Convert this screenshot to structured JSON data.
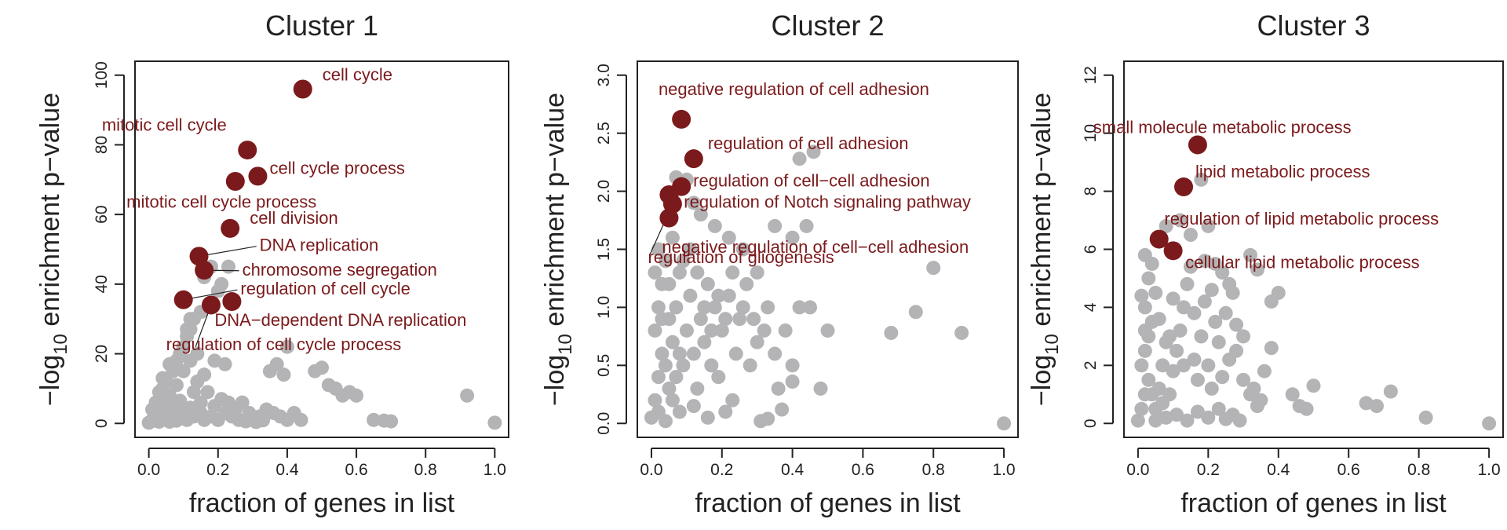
{
  "chart_data": [
    {
      "type": "scatter",
      "title": "Cluster 1",
      "xlabel": "fraction of genes in list",
      "ylabel_main": "−log",
      "ylabel_sub": "10",
      "ylabel_rest": " enrichment p−value",
      "xlim": [
        0,
        1
      ],
      "ylim": [
        0,
        100
      ],
      "xticks": [
        0,
        0.2,
        0.4,
        0.6,
        0.8,
        1.0
      ],
      "xtick_labels": [
        "0.0",
        "0.2",
        "0.4",
        "0.6",
        "0.8",
        "1.0"
      ],
      "yticks": [
        0,
        20,
        40,
        60,
        80,
        100
      ],
      "ytick_labels": [
        "0",
        "20",
        "40",
        "60",
        "80",
        "100"
      ],
      "highlight_color": "#7b1a1c",
      "background_color": "#b4b4b6",
      "highlighted": [
        {
          "label": "cell cycle",
          "x": 0.445,
          "y": 96
        },
        {
          "label": "mitotic cell cycle",
          "x": 0.285,
          "y": 78.5
        },
        {
          "label": "cell cycle process",
          "x": 0.315,
          "y": 71
        },
        {
          "label": "mitotic cell cycle process",
          "x": 0.25,
          "y": 69.5
        },
        {
          "label": "cell division",
          "x": 0.235,
          "y": 56
        },
        {
          "label": "DNA replication",
          "x": 0.145,
          "y": 48
        },
        {
          "label": "chromosome segregation",
          "x": 0.16,
          "y": 44
        },
        {
          "label": "regulation of cell cycle",
          "x": 0.1,
          "y": 35.5
        },
        {
          "label": "DNA−dependent DNA replication",
          "x": 0.18,
          "y": 34
        },
        {
          "label": "regulation of cell cycle process",
          "x": 0.24,
          "y": 35
        }
      ],
      "background": [
        [
          0.0,
          0.2
        ],
        [
          0.01,
          1
        ],
        [
          0.02,
          2
        ],
        [
          0.03,
          0.5
        ],
        [
          0.02,
          3
        ],
        [
          0.04,
          5
        ],
        [
          0.03,
          7
        ],
        [
          0.05,
          4
        ],
        [
          0.06,
          8
        ],
        [
          0.04,
          10
        ],
        [
          0.05,
          12
        ],
        [
          0.07,
          15
        ],
        [
          0.06,
          17
        ],
        [
          0.08,
          18
        ],
        [
          0.09,
          20
        ],
        [
          0.1,
          22
        ],
        [
          0.11,
          25
        ],
        [
          0.12,
          27
        ],
        [
          0.13,
          30
        ],
        [
          0.12,
          18
        ],
        [
          0.14,
          20
        ],
        [
          0.1,
          15
        ],
        [
          0.08,
          11
        ],
        [
          0.07,
          6
        ],
        [
          0.09,
          3
        ],
        [
          0.11,
          1
        ],
        [
          0.13,
          2
        ],
        [
          0.15,
          3
        ],
        [
          0.16,
          1
        ],
        [
          0.18,
          2
        ],
        [
          0.2,
          1
        ],
        [
          0.22,
          3
        ],
        [
          0.24,
          2
        ],
        [
          0.25,
          4
        ],
        [
          0.27,
          6
        ],
        [
          0.29,
          3
        ],
        [
          0.3,
          1
        ],
        [
          0.32,
          2
        ],
        [
          0.34,
          4
        ],
        [
          0.36,
          3
        ],
        [
          0.38,
          2
        ],
        [
          0.4,
          1
        ],
        [
          0.42,
          3
        ],
        [
          0.44,
          1
        ],
        [
          0.19,
          5
        ],
        [
          0.21,
          7
        ],
        [
          0.23,
          6
        ],
        [
          0.17,
          9
        ],
        [
          0.15,
          6
        ],
        [
          0.14,
          12
        ],
        [
          0.16,
          14
        ],
        [
          0.19,
          18
        ],
        [
          0.22,
          17
        ],
        [
          0.21,
          40
        ],
        [
          0.18,
          45
        ],
        [
          0.16,
          42
        ],
        [
          0.2,
          38
        ],
        [
          0.23,
          45
        ],
        [
          0.12,
          30
        ],
        [
          0.11,
          27
        ],
        [
          0.15,
          32
        ],
        [
          0.35,
          15
        ],
        [
          0.37,
          17
        ],
        [
          0.39,
          14
        ],
        [
          0.4,
          22
        ],
        [
          0.48,
          15
        ],
        [
          0.5,
          16
        ],
        [
          0.52,
          11
        ],
        [
          0.54,
          10
        ],
        [
          0.56,
          8
        ],
        [
          0.58,
          9
        ],
        [
          0.6,
          8
        ],
        [
          0.65,
          1
        ],
        [
          0.68,
          0.8
        ],
        [
          0.7,
          0.6
        ],
        [
          0.92,
          8
        ],
        [
          1.0,
          0.2
        ],
        [
          0.05,
          1.5
        ],
        [
          0.06,
          0.5
        ],
        [
          0.08,
          0.8
        ],
        [
          0.1,
          2.5
        ],
        [
          0.12,
          4.5
        ],
        [
          0.02,
          0.8
        ],
        [
          0.03,
          1.8
        ],
        [
          0.04,
          2.6
        ],
        [
          0.07,
          2.2
        ],
        [
          0.09,
          6.5
        ],
        [
          0.13,
          9
        ],
        [
          0.26,
          1
        ],
        [
          0.28,
          0.6
        ],
        [
          0.31,
          0.4
        ],
        [
          0.33,
          0.9
        ],
        [
          0.01,
          4
        ],
        [
          0.02,
          6
        ],
        [
          0.03,
          9
        ],
        [
          0.04,
          13
        ]
      ]
    },
    {
      "type": "scatter",
      "title": "Cluster 2",
      "xlabel": "fraction of genes in list",
      "ylabel_main": "−log",
      "ylabel_sub": "10",
      "ylabel_rest": " enrichment p−value",
      "xlim": [
        0,
        1
      ],
      "ylim": [
        0,
        3
      ],
      "xticks": [
        0,
        0.2,
        0.4,
        0.6,
        0.8,
        1.0
      ],
      "xtick_labels": [
        "0.0",
        "0.2",
        "0.4",
        "0.6",
        "0.8",
        "1.0"
      ],
      "yticks": [
        0,
        0.5,
        1.0,
        1.5,
        2.0,
        2.5,
        3.0
      ],
      "ytick_labels": [
        "0.0",
        "0.5",
        "1.0",
        "1.5",
        "2.0",
        "2.5",
        "3.0"
      ],
      "highlight_color": "#7b1a1c",
      "background_color": "#b4b4b6",
      "highlighted": [
        {
          "label": "negative regulation of cell adhesion",
          "x": 0.085,
          "y": 2.62
        },
        {
          "label": "regulation of cell adhesion",
          "x": 0.12,
          "y": 2.28
        },
        {
          "label": "regulation of cell−cell adhesion",
          "x": 0.085,
          "y": 2.04
        },
        {
          "label": "regulation of Notch signaling pathway",
          "x": 0.05,
          "y": 1.97
        },
        {
          "label": "negative regulation of cell−cell adhesion",
          "x": 0.06,
          "y": 1.89
        },
        {
          "label": "regulation of gliogenesis",
          "x": 0.05,
          "y": 1.77
        }
      ],
      "background": [
        [
          0.0,
          0.05
        ],
        [
          0.01,
          0.2
        ],
        [
          0.02,
          0.4
        ],
        [
          0.03,
          0.6
        ],
        [
          0.01,
          0.8
        ],
        [
          0.02,
          1.0
        ],
        [
          0.03,
          1.2
        ],
        [
          0.04,
          1.4
        ],
        [
          0.02,
          1.5
        ],
        [
          0.05,
          0.3
        ],
        [
          0.06,
          0.7
        ],
        [
          0.07,
          1.0
        ],
        [
          0.08,
          1.3
        ],
        [
          0.06,
          1.6
        ],
        [
          0.05,
          0.9
        ],
        [
          0.09,
          0.5
        ],
        [
          0.1,
          0.8
        ],
        [
          0.11,
          1.1
        ],
        [
          0.12,
          0.6
        ],
        [
          0.13,
          0.3
        ],
        [
          0.14,
          0.9
        ],
        [
          0.15,
          0.7
        ],
        [
          0.16,
          1.2
        ],
        [
          0.17,
          0.5
        ],
        [
          0.18,
          1.0
        ],
        [
          0.19,
          0.4
        ],
        [
          0.2,
          0.8
        ],
        [
          0.22,
          1.1
        ],
        [
          0.24,
          0.6
        ],
        [
          0.25,
          0.9
        ],
        [
          0.27,
          1.2
        ],
        [
          0.28,
          0.5
        ],
        [
          0.3,
          0.7
        ],
        [
          0.32,
          0.8
        ],
        [
          0.33,
          1.0
        ],
        [
          0.35,
          0.6
        ],
        [
          0.36,
          0.3
        ],
        [
          0.38,
          0.8
        ],
        [
          0.4,
          0.5
        ],
        [
          0.42,
          1.0
        ],
        [
          0.45,
          1.0
        ],
        [
          0.48,
          0.3
        ],
        [
          0.5,
          0.8
        ],
        [
          0.42,
          2.28
        ],
        [
          0.46,
          2.34
        ],
        [
          0.3,
          1.3
        ],
        [
          0.26,
          1.5
        ],
        [
          0.22,
          1.6
        ],
        [
          0.18,
          1.7
        ],
        [
          0.14,
          1.8
        ],
        [
          0.12,
          1.9
        ],
        [
          0.1,
          2.1
        ],
        [
          0.07,
          2.12
        ],
        [
          0.35,
          1.7
        ],
        [
          0.4,
          1.6
        ],
        [
          0.44,
          1.7
        ],
        [
          0.68,
          0.78
        ],
        [
          0.75,
          0.96
        ],
        [
          0.8,
          1.34
        ],
        [
          0.88,
          0.78
        ],
        [
          1.0,
          0.0
        ],
        [
          0.4,
          0.36
        ],
        [
          0.33,
          0.04
        ],
        [
          0.37,
          0.12
        ],
        [
          0.31,
          0.02
        ],
        [
          0.23,
          0.2
        ],
        [
          0.21,
          0.1
        ],
        [
          0.16,
          0.05
        ],
        [
          0.12,
          0.15
        ],
        [
          0.08,
          0.1
        ],
        [
          0.04,
          0.02
        ],
        [
          0.01,
          1.3
        ],
        [
          0.03,
          0.9
        ],
        [
          0.04,
          0.5
        ],
        [
          0.06,
          0.2
        ],
        [
          0.07,
          0.4
        ],
        [
          0.09,
          1.4
        ],
        [
          0.11,
          1.5
        ],
        [
          0.13,
          1.3
        ],
        [
          0.15,
          1.0
        ],
        [
          0.17,
          0.8
        ],
        [
          0.19,
          1.1
        ],
        [
          0.21,
          0.9
        ],
        [
          0.23,
          1.3
        ],
        [
          0.26,
          1.0
        ],
        [
          0.29,
          0.9
        ],
        [
          0.05,
          1.2
        ],
        [
          0.08,
          0.6
        ],
        [
          0.02,
          0.1
        ]
      ]
    },
    {
      "type": "scatter",
      "title": "Cluster 3",
      "xlabel": "fraction of genes in list",
      "ylabel_main": "−log",
      "ylabel_sub": "10",
      "ylabel_rest": " enrichment p−value",
      "xlim": [
        0,
        1
      ],
      "ylim": [
        0,
        12
      ],
      "xticks": [
        0,
        0.2,
        0.4,
        0.6,
        0.8,
        1.0
      ],
      "xtick_labels": [
        "0.0",
        "0.2",
        "0.4",
        "0.6",
        "0.8",
        "1.0"
      ],
      "yticks": [
        0,
        2,
        4,
        6,
        8,
        10,
        12
      ],
      "ytick_labels": [
        "0",
        "2",
        "4",
        "6",
        "8",
        "10",
        "12"
      ],
      "highlight_color": "#7b1a1c",
      "background_color": "#b4b4b6",
      "highlighted": [
        {
          "label": "small molecule metabolic process",
          "x": 0.17,
          "y": 9.6
        },
        {
          "label": "lipid metabolic process",
          "x": 0.13,
          "y": 8.15
        },
        {
          "label": "regulation of lipid metabolic process",
          "x": 0.06,
          "y": 6.35
        },
        {
          "label": "cellular lipid metabolic process",
          "x": 0.1,
          "y": 5.95
        }
      ],
      "background": [
        [
          0.0,
          0.1
        ],
        [
          0.01,
          0.5
        ],
        [
          0.02,
          1.0
        ],
        [
          0.03,
          1.5
        ],
        [
          0.01,
          2.0
        ],
        [
          0.02,
          2.5
        ],
        [
          0.03,
          3.0
        ],
        [
          0.04,
          3.5
        ],
        [
          0.02,
          4.0
        ],
        [
          0.05,
          0.5
        ],
        [
          0.06,
          1.2
        ],
        [
          0.07,
          2.0
        ],
        [
          0.08,
          2.8
        ],
        [
          0.06,
          3.6
        ],
        [
          0.05,
          4.5
        ],
        [
          0.03,
          5.0
        ],
        [
          0.04,
          5.5
        ],
        [
          0.02,
          5.8
        ],
        [
          0.09,
          1.0
        ],
        [
          0.1,
          1.8
        ],
        [
          0.11,
          2.5
        ],
        [
          0.12,
          3.2
        ],
        [
          0.13,
          4.0
        ],
        [
          0.14,
          4.8
        ],
        [
          0.15,
          5.4
        ],
        [
          0.16,
          2.2
        ],
        [
          0.17,
          1.5
        ],
        [
          0.18,
          3.0
        ],
        [
          0.19,
          4.2
        ],
        [
          0.2,
          2.0
        ],
        [
          0.21,
          1.2
        ],
        [
          0.22,
          3.5
        ],
        [
          0.23,
          2.8
        ],
        [
          0.24,
          1.6
        ],
        [
          0.25,
          3.8
        ],
        [
          0.27,
          4.5
        ],
        [
          0.28,
          2.5
        ],
        [
          0.3,
          1.5
        ],
        [
          0.32,
          1.0
        ],
        [
          0.34,
          0.6
        ],
        [
          0.36,
          1.8
        ],
        [
          0.38,
          4.2
        ],
        [
          0.4,
          4.5
        ],
        [
          0.38,
          2.6
        ],
        [
          0.35,
          0.8
        ],
        [
          0.33,
          1.2
        ],
        [
          0.44,
          1.0
        ],
        [
          0.46,
          0.6
        ],
        [
          0.5,
          1.3
        ],
        [
          0.48,
          0.5
        ],
        [
          0.22,
          5.5
        ],
        [
          0.24,
          5.2
        ],
        [
          0.26,
          4.8
        ],
        [
          0.2,
          6.8
        ],
        [
          0.15,
          6.5
        ],
        [
          0.12,
          7.0
        ],
        [
          0.18,
          8.4
        ],
        [
          0.08,
          6.8
        ],
        [
          0.34,
          5.3
        ],
        [
          0.32,
          5.8
        ],
        [
          0.65,
          0.7
        ],
        [
          0.68,
          0.6
        ],
        [
          0.72,
          1.1
        ],
        [
          0.82,
          0.2
        ],
        [
          1.0,
          0.0
        ],
        [
          0.29,
          0.1
        ],
        [
          0.27,
          0.3
        ],
        [
          0.25,
          0.15
        ],
        [
          0.23,
          0.5
        ],
        [
          0.2,
          0.2
        ],
        [
          0.17,
          0.4
        ],
        [
          0.14,
          0.1
        ],
        [
          0.11,
          0.3
        ],
        [
          0.08,
          0.2
        ],
        [
          0.05,
          0.1
        ],
        [
          0.04,
          1.0
        ],
        [
          0.07,
          0.7
        ],
        [
          0.09,
          3.0
        ],
        [
          0.1,
          4.3
        ],
        [
          0.13,
          2.0
        ],
        [
          0.16,
          3.8
        ],
        [
          0.19,
          5.6
        ],
        [
          0.21,
          4.6
        ],
        [
          0.28,
          3.4
        ],
        [
          0.3,
          3.0
        ],
        [
          0.26,
          2.2
        ],
        [
          0.02,
          3.2
        ],
        [
          0.01,
          4.4
        ]
      ]
    }
  ]
}
